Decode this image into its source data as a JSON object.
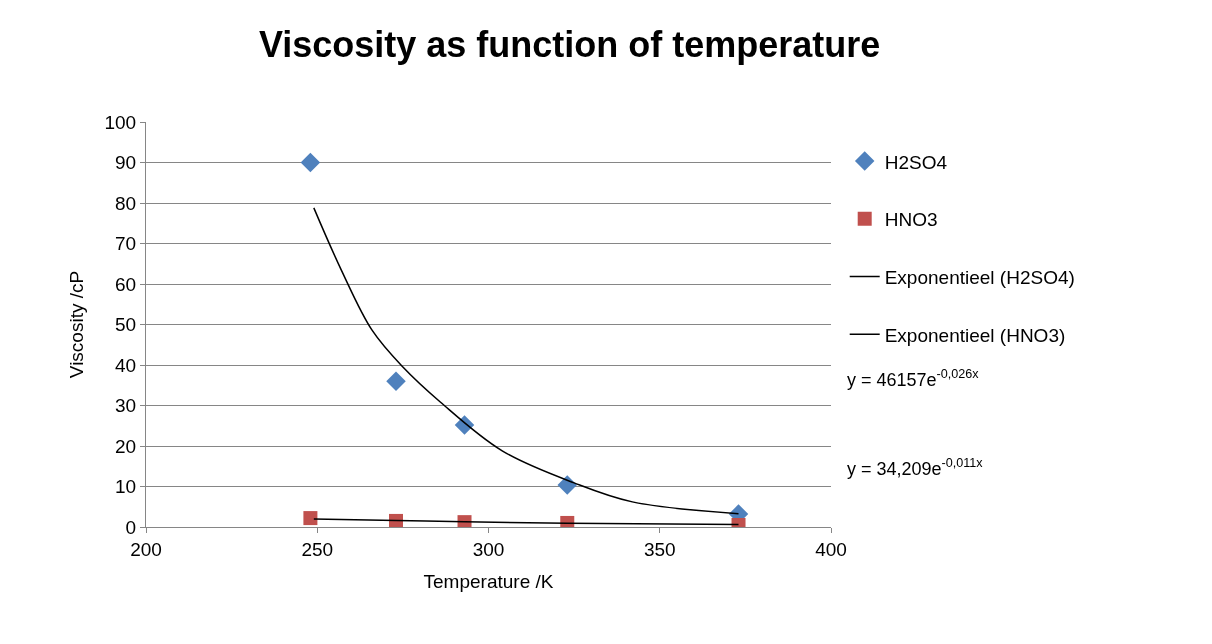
{
  "chart_data": {
    "type": "scatter",
    "title": "Viscosity as function of temperature",
    "xlabel": "Temperature /K",
    "ylabel": "Viscosity /cP",
    "xlim": [
      200,
      400
    ],
    "xticks": [
      200,
      250,
      300,
      350,
      400
    ],
    "ylim": [
      0,
      100
    ],
    "yticks": [
      0,
      10,
      20,
      30,
      40,
      50,
      60,
      70,
      80,
      90,
      100
    ],
    "grid": "y",
    "legend": "right",
    "series": [
      {
        "name": "H2SO4",
        "color": "#4f81bd",
        "marker": "diamond",
        "x": [
          248,
          273,
          293,
          323,
          373
        ],
        "values": [
          90,
          36,
          25.2,
          10.4,
          3.2
        ]
      },
      {
        "name": "HNO3",
        "color": "#c0504d",
        "marker": "square",
        "x": [
          248,
          273,
          293,
          323,
          373
        ],
        "values": [
          2.2,
          1.5,
          1.2,
          1,
          0.5
        ]
      },
      {
        "name": "Exponentieel (H2SO4)",
        "type": "line",
        "color": "#000000",
        "marker": "none",
        "line_style": "solid",
        "x": [
          249,
          257,
          266,
          275,
          286,
          304,
          325,
          342,
          373
        ],
        "values": [
          78.8,
          63.5,
          48.6,
          39.5,
          30.8,
          18.8,
          10.9,
          6.2,
          3.3
        ]
      },
      {
        "name": "Exponentieel (HNO3)",
        "type": "line",
        "color": "#000000",
        "marker": "none",
        "line_style": "solid",
        "x": [
          249,
          273,
          293,
          323,
          373
        ],
        "values": [
          2.0,
          1.6,
          1.3,
          0.9,
          0.6
        ]
      }
    ],
    "annotations": [
      "y = 46157e$^{-0,026x}$",
      "y = 34,209e$^{-0,011x}$"
    ]
  }
}
